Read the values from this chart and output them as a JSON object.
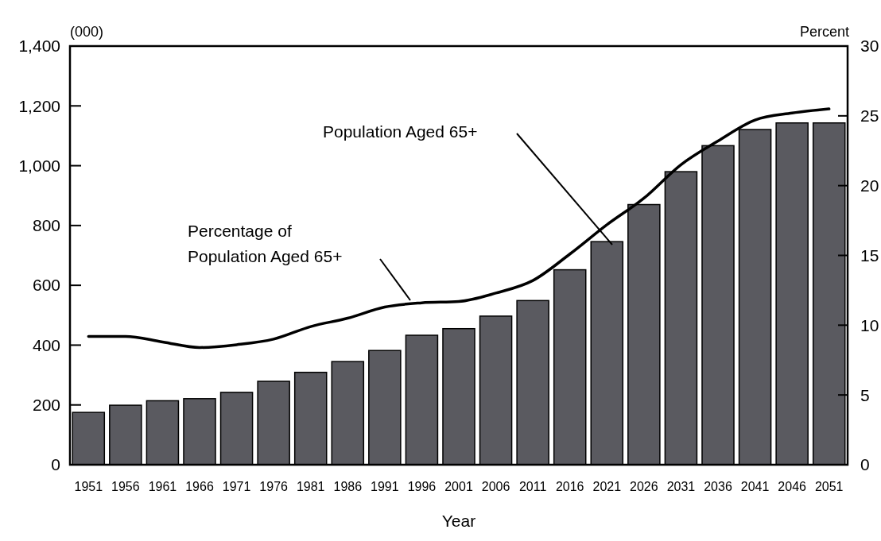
{
  "chart_data": {
    "type": "bar",
    "xlabel": "Year",
    "ylabel": "(000)",
    "y2label": "Percent",
    "categories": [
      "1951",
      "1956",
      "1961",
      "1966",
      "1971",
      "1976",
      "1981",
      "1986",
      "1991",
      "1996",
      "2001",
      "2006",
      "2011",
      "2016",
      "2021",
      "2026",
      "2031",
      "2036",
      "2041",
      "2046",
      "2051"
    ],
    "series": [
      {
        "color": "#5a5a60",
        "values": [
          175,
          199,
          214,
          221,
          242,
          279,
          309,
          345,
          382,
          433,
          455,
          497,
          549,
          652,
          746,
          870,
          980,
          1067,
          1121,
          1143,
          1143
        ]
      },
      {
        "type": "line",
        "axis": "y2",
        "color": "#000000",
        "values": [
          9.2,
          9.2,
          8.8,
          8.4,
          8.6,
          9.0,
          9.9,
          10.5,
          11.3,
          11.6,
          11.7,
          12.3,
          13.2,
          15.1,
          17.2,
          19.1,
          21.5,
          23.2,
          24.7,
          25.2,
          25.5
        ]
      }
    ],
    "ylim": [
      0,
      1400
    ],
    "yticks": [
      0,
      200,
      400,
      600,
      800,
      {
        "value": 1000,
        "label": "1,000"
      },
      {
        "value": 1200,
        "label": "1,200"
      },
      {
        "value": 1400,
        "label": "1,400"
      }
    ],
    "y2lim": [
      0,
      30
    ],
    "y2ticks": [
      0,
      5,
      10,
      15,
      20,
      25,
      30
    ],
    "annotations": [
      "Population Aged 65+",
      "Percentage of\nPopulation Aged 65+"
    ]
  }
}
